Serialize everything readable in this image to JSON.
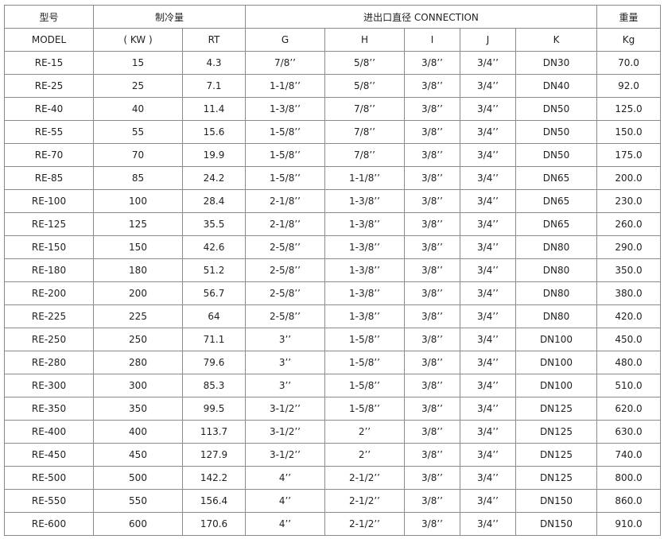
{
  "header": {
    "model_cn": "型号",
    "model_en": "MODEL",
    "capacity": "制冷量",
    "connection": "进出口直径 CONNECTION",
    "weight": "重量",
    "kw": "( KW )",
    "rt": "RT",
    "g": "G",
    "h": "H",
    "i": "I",
    "j": "J",
    "k": "K",
    "kg": "Kg"
  },
  "rows": [
    [
      "RE-15",
      "15",
      "4.3",
      "7/8’’",
      "5/8’’",
      "3/8’’",
      "3/4’’",
      "DN30",
      "70.0"
    ],
    [
      "RE-25",
      "25",
      "7.1",
      "1-1/8’’",
      "5/8’’",
      "3/8’’",
      "3/4’’",
      "DN40",
      "92.0"
    ],
    [
      "RE-40",
      "40",
      "11.4",
      "1-3/8’’",
      "7/8’’",
      "3/8’’",
      "3/4’’",
      "DN50",
      "125.0"
    ],
    [
      "RE-55",
      "55",
      "15.6",
      "1-5/8’’",
      "7/8’’",
      "3/8’’",
      "3/4’’",
      "DN50",
      "150.0"
    ],
    [
      "RE-70",
      "70",
      "19.9",
      "1-5/8’’",
      "7/8’’",
      "3/8’’",
      "3/4’’",
      "DN50",
      "175.0"
    ],
    [
      "RE-85",
      "85",
      "24.2",
      "1-5/8’’",
      "1-1/8’’",
      "3/8’’",
      "3/4’’",
      "DN65",
      "200.0"
    ],
    [
      "RE-100",
      "100",
      "28.4",
      "2-1/8’’",
      "1-3/8’’",
      "3/8’’",
      "3/4’’",
      "DN65",
      "230.0"
    ],
    [
      "RE-125",
      "125",
      "35.5",
      "2-1/8’’",
      "1-3/8’’",
      "3/8’’",
      "3/4’’",
      "DN65",
      "260.0"
    ],
    [
      "RE-150",
      "150",
      "42.6",
      "2-5/8’’",
      "1-3/8’’",
      "3/8’’",
      "3/4’’",
      "DN80",
      "290.0"
    ],
    [
      "RE-180",
      "180",
      "51.2",
      "2-5/8’’",
      "1-3/8’’",
      "3/8’’",
      "3/4’’",
      "DN80",
      "350.0"
    ],
    [
      "RE-200",
      "200",
      "56.7",
      "2-5/8’’",
      "1-3/8’’",
      "3/8’’",
      "3/4’’",
      "DN80",
      "380.0"
    ],
    [
      "RE-225",
      "225",
      "64",
      "2-5/8’’",
      "1-3/8’’",
      "3/8’’",
      "3/4’’",
      "DN80",
      "420.0"
    ],
    [
      "RE-250",
      "250",
      "71.1",
      "3’’",
      "1-5/8’’",
      "3/8’’",
      "3/4’’",
      "DN100",
      "450.0"
    ],
    [
      "RE-280",
      "280",
      "79.6",
      "3’’",
      "1-5/8’’",
      "3/8’’",
      "3/4’’",
      "DN100",
      "480.0"
    ],
    [
      "RE-300",
      "300",
      "85.3",
      "3’’",
      "1-5/8’’",
      "3/8’’",
      "3/4’’",
      "DN100",
      "510.0"
    ],
    [
      "RE-350",
      "350",
      "99.5",
      "3-1/2’’",
      "1-5/8’’",
      "3/8’’",
      "3/4’’",
      "DN125",
      "620.0"
    ],
    [
      "RE-400",
      "400",
      "113.7",
      "3-1/2’’",
      "2’’",
      "3/8’’",
      "3/4’’",
      "DN125",
      "630.0"
    ],
    [
      "RE-450",
      "450",
      "127.9",
      "3-1/2’’",
      "2’’",
      "3/8’’",
      "3/4’’",
      "DN125",
      "740.0"
    ],
    [
      "RE-500",
      "500",
      "142.2",
      "4’’",
      "2-1/2’’",
      "3/8’’",
      "3/4’’",
      "DN125",
      "800.0"
    ],
    [
      "RE-550",
      "550",
      "156.4",
      "4’’",
      "2-1/2’’",
      "3/8’’",
      "3/4’’",
      "DN150",
      "860.0"
    ],
    [
      "RE-600",
      "600",
      "170.6",
      "4’’",
      "2-1/2’’",
      "3/8’’",
      "3/4’’",
      "DN150",
      "910.0"
    ]
  ]
}
